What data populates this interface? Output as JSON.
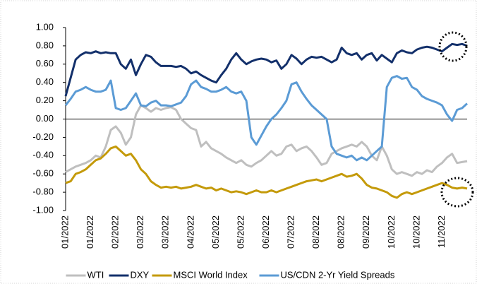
{
  "chart_data": {
    "type": "line",
    "categories": [
      "01/2022",
      null,
      null,
      null,
      null,
      "01/2022",
      null,
      null,
      null,
      null,
      "02/2022",
      null,
      null,
      null,
      null,
      "03/2022",
      null,
      null,
      null,
      null,
      "03/2022",
      null,
      null,
      null,
      null,
      "04/2022",
      null,
      null,
      null,
      null,
      "05/2022",
      null,
      null,
      null,
      null,
      "05/2022",
      null,
      null,
      null,
      null,
      "06/2022",
      null,
      null,
      null,
      null,
      "07/2022",
      null,
      null,
      null,
      null,
      "08/2022",
      null,
      null,
      null,
      null,
      "08/2022",
      null,
      null,
      null,
      null,
      "09/2022",
      null,
      null,
      null,
      null,
      "10/2022",
      null,
      null,
      null,
      null,
      "10/2022",
      null,
      null,
      null,
      null,
      "11/2022",
      null,
      null,
      null,
      null,
      null
    ],
    "series": [
      {
        "name": "WTI",
        "color": "#bfbfbf",
        "values": [
          -0.58,
          -0.55,
          -0.52,
          -0.5,
          -0.48,
          -0.45,
          -0.4,
          -0.42,
          -0.3,
          -0.12,
          -0.08,
          -0.15,
          -0.28,
          -0.2,
          0.05,
          0.15,
          0.12,
          0.08,
          0.12,
          0.1,
          0.12,
          0.13,
          0.1,
          0.0,
          -0.05,
          -0.1,
          -0.12,
          -0.3,
          -0.25,
          -0.32,
          -0.35,
          -0.38,
          -0.42,
          -0.45,
          -0.48,
          -0.45,
          -0.5,
          -0.52,
          -0.48,
          -0.45,
          -0.4,
          -0.35,
          -0.4,
          -0.38,
          -0.3,
          -0.28,
          -0.35,
          -0.32,
          -0.3,
          -0.35,
          -0.42,
          -0.5,
          -0.48,
          -0.38,
          -0.35,
          -0.32,
          -0.3,
          -0.28,
          -0.3,
          -0.25,
          -0.3,
          -0.4,
          -0.45,
          -0.3,
          -0.4,
          -0.55,
          -0.6,
          -0.58,
          -0.6,
          -0.62,
          -0.58,
          -0.6,
          -0.56,
          -0.58,
          -0.52,
          -0.48,
          -0.42,
          -0.38,
          -0.48,
          -0.47,
          -0.46
        ]
      },
      {
        "name": "DXY",
        "color": "#13306b",
        "values": [
          0.25,
          0.45,
          0.65,
          0.7,
          0.73,
          0.72,
          0.74,
          0.72,
          0.73,
          0.72,
          0.72,
          0.6,
          0.55,
          0.65,
          0.48,
          0.6,
          0.7,
          0.68,
          0.62,
          0.58,
          0.58,
          0.58,
          0.57,
          0.58,
          0.55,
          0.5,
          0.52,
          0.48,
          0.45,
          0.42,
          0.4,
          0.48,
          0.55,
          0.65,
          0.72,
          0.65,
          0.6,
          0.63,
          0.65,
          0.66,
          0.65,
          0.62,
          0.64,
          0.55,
          0.6,
          0.7,
          0.66,
          0.6,
          0.65,
          0.68,
          0.67,
          0.68,
          0.65,
          0.62,
          0.65,
          0.78,
          0.72,
          0.7,
          0.72,
          0.65,
          0.7,
          0.72,
          0.64,
          0.7,
          0.66,
          0.62,
          0.72,
          0.75,
          0.73,
          0.72,
          0.76,
          0.78,
          0.79,
          0.78,
          0.76,
          0.74,
          0.78,
          0.82,
          0.81,
          0.82,
          0.8
        ]
      },
      {
        "name": "MSCI World Index",
        "color": "#c49a0a",
        "values": [
          -0.7,
          -0.68,
          -0.6,
          -0.58,
          -0.55,
          -0.5,
          -0.45,
          -0.43,
          -0.38,
          -0.32,
          -0.3,
          -0.35,
          -0.4,
          -0.38,
          -0.45,
          -0.55,
          -0.6,
          -0.68,
          -0.72,
          -0.75,
          -0.74,
          -0.75,
          -0.74,
          -0.76,
          -0.75,
          -0.74,
          -0.72,
          -0.74,
          -0.76,
          -0.75,
          -0.78,
          -0.76,
          -0.78,
          -0.8,
          -0.79,
          -0.8,
          -0.82,
          -0.8,
          -0.78,
          -0.8,
          -0.8,
          -0.78,
          -0.8,
          -0.78,
          -0.76,
          -0.74,
          -0.72,
          -0.7,
          -0.68,
          -0.67,
          -0.66,
          -0.68,
          -0.66,
          -0.64,
          -0.62,
          -0.6,
          -0.63,
          -0.62,
          -0.6,
          -0.65,
          -0.72,
          -0.75,
          -0.76,
          -0.78,
          -0.8,
          -0.84,
          -0.86,
          -0.82,
          -0.8,
          -0.82,
          -0.8,
          -0.78,
          -0.76,
          -0.74,
          -0.72,
          -0.7,
          -0.72,
          -0.75,
          -0.76,
          -0.75,
          -0.76
        ]
      },
      {
        "name": "US/CDN 2-Yr Yield Spreads",
        "color": "#5b9bd5",
        "values": [
          0.15,
          0.22,
          0.3,
          0.32,
          0.35,
          0.32,
          0.3,
          0.3,
          0.32,
          0.42,
          0.12,
          0.1,
          0.12,
          0.2,
          0.28,
          0.15,
          0.14,
          0.18,
          0.2,
          0.15,
          0.15,
          0.14,
          0.16,
          0.18,
          0.25,
          0.38,
          0.42,
          0.35,
          0.33,
          0.3,
          0.3,
          0.32,
          0.35,
          0.3,
          0.28,
          0.3,
          0.2,
          -0.2,
          -0.28,
          -0.18,
          -0.08,
          0.0,
          0.05,
          0.12,
          0.2,
          0.38,
          0.4,
          0.3,
          0.22,
          0.15,
          0.1,
          0.05,
          0.0,
          -0.3,
          -0.38,
          -0.4,
          -0.42,
          -0.4,
          -0.45,
          -0.42,
          -0.45,
          -0.4,
          -0.35,
          -0.3,
          0.35,
          0.45,
          0.47,
          0.44,
          0.45,
          0.35,
          0.32,
          0.25,
          0.22,
          0.2,
          0.18,
          0.15,
          0.05,
          -0.02,
          0.1,
          0.12,
          0.17
        ]
      }
    ],
    "ylim": [
      -1,
      1
    ],
    "yticks": [
      {
        "value": 1,
        "label": "1.00"
      },
      {
        "value": 0.8,
        "label": "0.80"
      },
      {
        "value": 0.6,
        "label": "0.60"
      },
      {
        "value": 0.4,
        "label": "0.40"
      },
      {
        "value": 0.2,
        "label": "0.20"
      },
      {
        "value": 0,
        "label": "0.00"
      },
      {
        "value": -0.2,
        "label": "-0.20"
      },
      {
        "value": -0.4,
        "label": "-0.40"
      },
      {
        "value": -0.6,
        "label": "-0.60"
      },
      {
        "value": -0.8,
        "label": "-0.80"
      },
      {
        "value": -1,
        "label": "-1.00"
      }
    ],
    "grid": false,
    "legend": "bottom"
  }
}
